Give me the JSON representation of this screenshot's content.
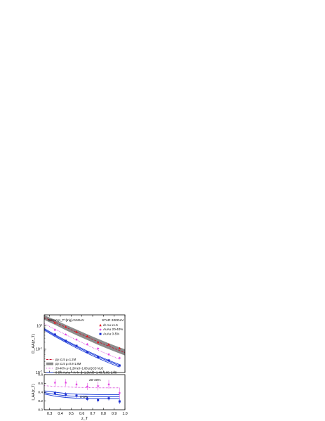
{
  "chart_data": [
    {
      "type": "scatter",
      "panel": "upper",
      "yscale": "log",
      "xlim": [
        0.25,
        1.0
      ],
      "ylim": [
        0.01,
        3.0
      ],
      "ylabel": "D_AA(z_T)",
      "yticks": [
        {
          "value": 0.01,
          "base": "10",
          "exp": "-2"
        },
        {
          "value": 0.1,
          "base": "10",
          "exp": "-1"
        },
        {
          "value": 1,
          "base": "10",
          "exp": "0"
        }
      ],
      "annotation_kin": "8GeV<p_T^{trig}<15GeV",
      "annotation_star": "STAR  200GeV",
      "band": {
        "label": "pp x1.5 μ=0.8-1.8M",
        "x": [
          0.25,
          0.35,
          0.45,
          0.55,
          0.65,
          0.75,
          0.85,
          0.95,
          1.0
        ],
        "upper": [
          2.9,
          1.85,
          1.12,
          0.7,
          0.44,
          0.28,
          0.18,
          0.12,
          0.1
        ],
        "lower": [
          1.85,
          1.12,
          0.66,
          0.4,
          0.25,
          0.155,
          0.1,
          0.066,
          0.054
        ],
        "color": "#8c8c8c"
      },
      "lines": [
        {
          "name": "pp x1.5 μ=1.2M",
          "style": "dash",
          "color": "#c8102e",
          "x": [
            0.25,
            0.35,
            0.45,
            0.55,
            0.65,
            0.75,
            0.85,
            0.95,
            1.0
          ],
          "y": [
            2.3,
            1.45,
            0.88,
            0.54,
            0.34,
            0.21,
            0.135,
            0.088,
            0.072
          ]
        },
        {
          "name": "20-40% μ=1.2M ε0=1.68 pQCD NLO",
          "style": "dot",
          "color": "#d63ad6",
          "x": [
            0.25,
            0.35,
            0.45,
            0.55,
            0.65,
            0.75,
            0.85,
            0.95
          ],
          "y": [
            1.25,
            0.72,
            0.42,
            0.25,
            0.15,
            0.092,
            0.058,
            0.037
          ]
        },
        {
          "name": "0-5% ε0=1.48",
          "style": "solid",
          "color": "#1f3fd8",
          "x": [
            0.25,
            0.35,
            0.45,
            0.55,
            0.65,
            0.75,
            0.85,
            0.95
          ],
          "y": [
            0.78,
            0.42,
            0.24,
            0.14,
            0.084,
            0.052,
            0.033,
            0.022
          ]
        },
        {
          "name": "0-5% ε0=1.68",
          "style": "solid",
          "color": "#1f3fd8",
          "x": [
            0.25,
            0.35,
            0.45,
            0.55,
            0.65,
            0.75,
            0.85,
            0.95
          ],
          "y": [
            0.72,
            0.385,
            0.22,
            0.128,
            0.076,
            0.047,
            0.03,
            0.0195
          ]
        },
        {
          "name": "0-5% ε0=2.08",
          "style": "solid",
          "color": "#1f3fd8",
          "x": [
            0.25,
            0.35,
            0.45,
            0.55,
            0.65,
            0.75,
            0.85,
            0.95
          ],
          "y": [
            0.66,
            0.35,
            0.198,
            0.113,
            0.067,
            0.041,
            0.026,
            0.017
          ]
        }
      ],
      "series": [
        {
          "name": "d+Au  x1.5",
          "marker": "triangle",
          "color": "#e8141c",
          "x": [
            0.35,
            0.45,
            0.55,
            0.65,
            0.75,
            0.85,
            0.95
          ],
          "y": [
            1.4,
            0.92,
            0.56,
            0.36,
            0.2,
            0.16,
            0.11
          ]
        },
        {
          "name": "AuAu  20-40%",
          "marker": "star",
          "color": "#e23ae2",
          "x": [
            0.35,
            0.45,
            0.55,
            0.65,
            0.75,
            0.85,
            0.95
          ],
          "y": [
            0.68,
            0.43,
            0.26,
            0.165,
            0.108,
            0.06,
            0.042
          ]
        },
        {
          "name": "AuAu  0-5%",
          "marker": "square",
          "color": "#1c2fd1",
          "x": [
            0.35,
            0.45,
            0.55,
            0.65,
            0.75,
            0.85,
            0.95
          ],
          "y": [
            0.43,
            0.23,
            0.14,
            0.075,
            0.046,
            0.033,
            0.02
          ]
        }
      ],
      "legend": [
        {
          "text": "pp x1.5 μ=1.2M",
          "style": "dash",
          "color": "#c8102e"
        },
        {
          "text": "pp x1.5 μ=0.8-1.8M",
          "style": "band",
          "color": "#8c8c8c"
        },
        {
          "text": "20-40% μ=1.2M ε0=1.68 pQCD NLO",
          "style": "dot",
          "color": "#d63ad6"
        },
        {
          "text": "0-5% AuAu →h+h-  μ=1.2M ε0=1.48, 1.68, 2.08",
          "style": "solid",
          "color": "#1f3fd8"
        }
      ],
      "legend_placement": "bottom-left"
    },
    {
      "type": "scatter",
      "panel": "lower",
      "xlim": [
        0.25,
        1.0
      ],
      "ylim": [
        0.0,
        0.8
      ],
      "xlabel": "z_T",
      "ylabel": "I_AA(z_T)",
      "xticks": [
        "0.3",
        "0.4",
        "0.5",
        "0.6",
        "0.7",
        "0.8",
        "0.9",
        "1.0"
      ],
      "yticks": [
        "0.0",
        "0.2",
        "0.4",
        "0.6",
        "0.8"
      ],
      "labels": {
        "mid": "20-40%",
        "central": "0-5%"
      },
      "lines": [
        {
          "name": "20-40%",
          "style": "dot",
          "color": "#d63ad6",
          "x": [
            0.25,
            0.35,
            0.45,
            0.55,
            0.65,
            0.75,
            0.85,
            0.95
          ],
          "y": [
            0.55,
            0.53,
            0.52,
            0.51,
            0.505,
            0.5,
            0.5,
            0.5
          ]
        },
        {
          "name": "0-5% ε0=1.48",
          "style": "solid",
          "color": "#1f3fd8",
          "x": [
            0.25,
            0.35,
            0.45,
            0.55,
            0.65,
            0.75,
            0.85,
            0.95
          ],
          "y": [
            0.43,
            0.4,
            0.37,
            0.355,
            0.35,
            0.345,
            0.345,
            0.345
          ]
        },
        {
          "name": "0-5% ε0=1.68",
          "style": "solid",
          "color": "#1f3fd8",
          "x": [
            0.25,
            0.35,
            0.45,
            0.55,
            0.65,
            0.75,
            0.85,
            0.95
          ],
          "y": [
            0.39,
            0.35,
            0.32,
            0.305,
            0.3,
            0.295,
            0.295,
            0.295
          ]
        },
        {
          "name": "0-5% ε0=2.08",
          "style": "solid",
          "color": "#1f3fd8",
          "x": [
            0.25,
            0.35,
            0.45,
            0.55,
            0.65,
            0.75,
            0.85,
            0.95
          ],
          "y": [
            0.36,
            0.31,
            0.28,
            0.262,
            0.255,
            0.25,
            0.25,
            0.25
          ]
        }
      ],
      "series": [
        {
          "name": "AuAu 20-40%",
          "marker": "star",
          "color": "#e23ae2",
          "x": [
            0.35,
            0.45,
            0.55,
            0.65,
            0.75,
            0.85,
            0.95
          ],
          "y": [
            0.62,
            0.62,
            0.58,
            0.53,
            0.54,
            0.58,
            0.38
          ],
          "err": [
            0.08,
            0.08,
            0.08,
            0.08,
            0.1,
            0.1,
            0.12
          ]
        },
        {
          "name": "AuAu 0-5%",
          "marker": "square",
          "color": "#1c2fd1",
          "x": [
            0.35,
            0.45,
            0.55,
            0.65,
            0.75,
            0.85,
            0.95
          ],
          "y": [
            0.38,
            0.35,
            0.32,
            0.25,
            0.22,
            0.26,
            0.19
          ],
          "err": [
            0.05,
            0.05,
            0.05,
            0.05,
            0.05,
            0.05,
            0.06
          ]
        }
      ]
    }
  ]
}
